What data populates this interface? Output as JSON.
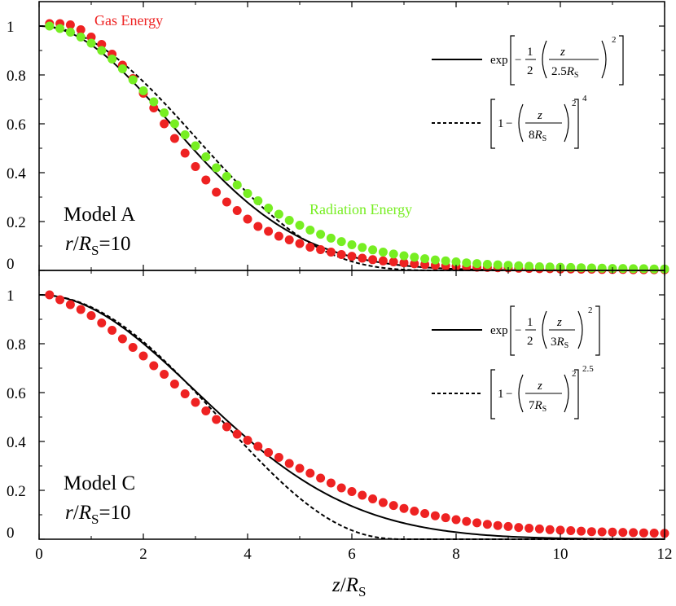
{
  "chart_data": [
    {
      "type": "scatter",
      "panel": "top",
      "model_label": "Model A",
      "radius_label": {
        "r": "r",
        "slash": "/",
        "R": "R",
        "sub": "S",
        "eq": "=10"
      },
      "xlim": [
        0,
        12
      ],
      "ylim": [
        0,
        1.1
      ],
      "x_ticks": [
        "0",
        "2",
        "4",
        "6",
        "8",
        "10",
        "12"
      ],
      "y_ticks": [
        "0",
        "0.2",
        "0.4",
        "0.6",
        "0.8",
        "1"
      ],
      "series": [
        {
          "name": "Gas Energy",
          "kind": "points",
          "color": "#ee2222",
          "x": [
            0.2,
            0.4,
            0.6,
            0.8,
            1.0,
            1.2,
            1.4,
            1.6,
            1.8,
            2.0,
            2.2,
            2.4,
            2.6,
            2.8,
            3.0,
            3.2,
            3.4,
            3.6,
            3.8,
            4.0,
            4.2,
            4.4,
            4.6,
            4.8,
            5.0,
            5.2,
            5.4,
            5.6,
            5.8,
            6.0,
            6.2,
            6.4,
            6.6,
            6.8,
            7.0,
            7.2,
            7.4,
            7.6,
            7.8,
            8.0,
            8.2,
            8.4,
            8.6,
            8.8,
            9.0,
            9.2,
            9.4,
            9.6,
            9.8,
            10.0,
            10.2,
            10.4,
            10.6,
            10.8,
            11.0,
            11.2,
            11.4,
            11.6,
            11.8,
            12.0
          ],
          "y": [
            1.01,
            1.01,
            1.005,
            0.985,
            0.955,
            0.925,
            0.885,
            0.84,
            0.785,
            0.725,
            0.665,
            0.6,
            0.54,
            0.48,
            0.425,
            0.37,
            0.32,
            0.28,
            0.245,
            0.21,
            0.18,
            0.16,
            0.14,
            0.125,
            0.11,
            0.095,
            0.085,
            0.075,
            0.065,
            0.058,
            0.05,
            0.044,
            0.039,
            0.035,
            0.031,
            0.027,
            0.024,
            0.021,
            0.019,
            0.017,
            0.015,
            0.013,
            0.012,
            0.011,
            0.01,
            0.009,
            0.008,
            0.007,
            0.007,
            0.006,
            0.006,
            0.005,
            0.005,
            0.004,
            0.004,
            0.004,
            0.003,
            0.003,
            0.003,
            0.003
          ]
        },
        {
          "name": "Radiation Energy",
          "kind": "points",
          "color": "#77ee22",
          "x": [
            0.2,
            0.4,
            0.6,
            0.8,
            1.0,
            1.2,
            1.4,
            1.6,
            1.8,
            2.0,
            2.2,
            2.4,
            2.6,
            2.8,
            3.0,
            3.2,
            3.4,
            3.6,
            3.8,
            4.0,
            4.2,
            4.4,
            4.6,
            4.8,
            5.0,
            5.2,
            5.4,
            5.6,
            5.8,
            6.0,
            6.2,
            6.4,
            6.6,
            6.8,
            7.0,
            7.2,
            7.4,
            7.6,
            7.8,
            8.0,
            8.2,
            8.4,
            8.6,
            8.8,
            9.0,
            9.2,
            9.4,
            9.6,
            9.8,
            10.0,
            10.2,
            10.4,
            10.6,
            10.8,
            11.0,
            11.2,
            11.4,
            11.6,
            11.8,
            12.0
          ],
          "y": [
            1.0,
            0.99,
            0.975,
            0.955,
            0.93,
            0.9,
            0.865,
            0.825,
            0.78,
            0.735,
            0.69,
            0.645,
            0.6,
            0.555,
            0.51,
            0.465,
            0.42,
            0.385,
            0.35,
            0.315,
            0.285,
            0.255,
            0.23,
            0.205,
            0.185,
            0.165,
            0.148,
            0.132,
            0.118,
            0.105,
            0.094,
            0.084,
            0.075,
            0.067,
            0.06,
            0.054,
            0.048,
            0.043,
            0.039,
            0.035,
            0.031,
            0.028,
            0.025,
            0.023,
            0.021,
            0.019,
            0.017,
            0.015,
            0.014,
            0.013,
            0.012,
            0.011,
            0.01,
            0.009,
            0.008,
            0.008,
            0.007,
            0.007,
            0.006,
            0.006
          ]
        },
        {
          "name": "exp fit",
          "kind": "line",
          "dash": false,
          "func": "gauss",
          "param": 2.5,
          "legend": {
            "prefix": "exp",
            "minus": "−",
            "num": "1",
            "den": "2",
            "z": "z",
            "den2": "2.5",
            "R": "R",
            "sub": "S",
            "power": "2"
          }
        },
        {
          "name": "power fit",
          "kind": "line",
          "dash": true,
          "func": "poly",
          "param": 8,
          "exponent": 4,
          "legend": {
            "one": "1",
            "minus": "−",
            "z": "z",
            "den": "8",
            "R": "R",
            "sub": "S",
            "inner_power": "2",
            "power": "4"
          }
        }
      ]
    },
    {
      "type": "scatter",
      "panel": "bottom",
      "model_label": "Model C",
      "radius_label": {
        "r": "r",
        "slash": "/",
        "R": "R",
        "sub": "S",
        "eq": "=10"
      },
      "xlim": [
        0,
        12
      ],
      "ylim": [
        0,
        1.1
      ],
      "x_ticks": [
        "0",
        "2",
        "4",
        "6",
        "8",
        "10",
        "12"
      ],
      "y_ticks": [
        "0",
        "0.2",
        "0.4",
        "0.6",
        "0.8",
        "1"
      ],
      "xlabel": {
        "z": "z",
        "slash": "/",
        "R": "R",
        "sub": "S"
      },
      "series": [
        {
          "name": "Gas Energy",
          "kind": "points",
          "color": "#ee2222",
          "x": [
            0.2,
            0.4,
            0.6,
            0.8,
            1.0,
            1.2,
            1.4,
            1.6,
            1.8,
            2.0,
            2.2,
            2.4,
            2.6,
            2.8,
            3.0,
            3.2,
            3.4,
            3.6,
            3.8,
            4.0,
            4.2,
            4.4,
            4.6,
            4.8,
            5.0,
            5.2,
            5.4,
            5.6,
            5.8,
            6.0,
            6.2,
            6.4,
            6.6,
            6.8,
            7.0,
            7.2,
            7.4,
            7.6,
            7.8,
            8.0,
            8.2,
            8.4,
            8.6,
            8.8,
            9.0,
            9.2,
            9.4,
            9.6,
            9.8,
            10.0,
            10.2,
            10.4,
            10.6,
            10.8,
            11.0,
            11.2,
            11.4,
            11.6,
            11.8,
            12.0
          ],
          "y": [
            1.0,
            0.98,
            0.96,
            0.94,
            0.915,
            0.885,
            0.855,
            0.82,
            0.785,
            0.75,
            0.71,
            0.675,
            0.635,
            0.595,
            0.56,
            0.525,
            0.49,
            0.46,
            0.43,
            0.405,
            0.38,
            0.355,
            0.335,
            0.31,
            0.29,
            0.27,
            0.25,
            0.23,
            0.21,
            0.195,
            0.18,
            0.165,
            0.15,
            0.138,
            0.126,
            0.115,
            0.105,
            0.096,
            0.088,
            0.08,
            0.073,
            0.067,
            0.061,
            0.056,
            0.052,
            0.048,
            0.045,
            0.042,
            0.039,
            0.037,
            0.035,
            0.033,
            0.031,
            0.03,
            0.029,
            0.028,
            0.027,
            0.026,
            0.025,
            0.024
          ]
        },
        {
          "name": "exp fit",
          "kind": "line",
          "dash": false,
          "func": "gauss",
          "param": 3,
          "legend": {
            "prefix": "exp",
            "minus": "−",
            "num": "1",
            "den": "2",
            "z": "z",
            "den2": "3",
            "R": "R",
            "sub": "S",
            "power": "2"
          }
        },
        {
          "name": "power fit",
          "kind": "line",
          "dash": true,
          "func": "poly",
          "param": 7,
          "exponent": 2.5,
          "legend": {
            "one": "1",
            "minus": "−",
            "z": "z",
            "den": "7",
            "R": "R",
            "sub": "S",
            "inner_power": "2",
            "power": "2.5"
          }
        }
      ]
    }
  ]
}
